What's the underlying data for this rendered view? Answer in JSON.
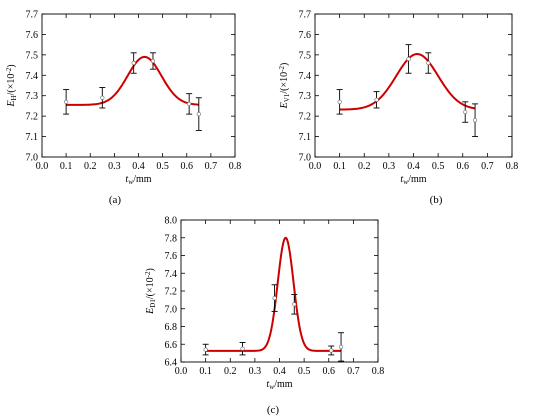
{
  "chart_data": [
    {
      "type": "line",
      "panel_label": "(a)",
      "x_axis_symbol": "t",
      "x_axis_subscript": "w",
      "x_axis_unit": "/mm",
      "y_axis_symbol": "E",
      "y_axis_subscript": "H",
      "y_axis_unit": "/(×10",
      "y_axis_unit_exponent": "-2",
      "y_axis_unit_close": ")",
      "xlim": [
        0.0,
        0.8
      ],
      "ylim": [
        7.0,
        7.7
      ],
      "xticks": [
        "0.0",
        "0.1",
        "0.2",
        "0.3",
        "0.4",
        "0.5",
        "0.6",
        "0.7",
        "0.8"
      ],
      "yticks": [
        "7.0",
        "7.1",
        "7.2",
        "7.3",
        "7.4",
        "7.5",
        "7.6",
        "7.7"
      ],
      "points": [
        {
          "x": 0.1,
          "y": 7.27,
          "err": 0.06
        },
        {
          "x": 0.25,
          "y": 7.29,
          "err": 0.05
        },
        {
          "x": 0.38,
          "y": 7.46,
          "err": 0.05
        },
        {
          "x": 0.46,
          "y": 7.47,
          "err": 0.04
        },
        {
          "x": 0.61,
          "y": 7.26,
          "err": 0.05
        },
        {
          "x": 0.65,
          "y": 7.21,
          "err": 0.08
        }
      ],
      "fit_curve": {
        "baseline": 7.255,
        "amplitude": 0.235,
        "center": 0.425,
        "width": 0.07,
        "x_start": 0.1,
        "x_end": 0.65
      },
      "colors": {
        "fit": "#cc0000",
        "points": "#000000"
      }
    },
    {
      "type": "line",
      "panel_label": "(b)",
      "x_axis_symbol": "t",
      "x_axis_subscript": "w",
      "x_axis_unit": "/mm",
      "y_axis_symbol": "E",
      "y_axis_subscript": "V1",
      "y_axis_unit": "/(×10",
      "y_axis_unit_exponent": "-2",
      "y_axis_unit_close": ")",
      "xlim": [
        0.0,
        0.8
      ],
      "ylim": [
        7.0,
        7.7
      ],
      "xticks": [
        "0.0",
        "0.1",
        "0.2",
        "0.3",
        "0.4",
        "0.5",
        "0.6",
        "0.7",
        "0.8"
      ],
      "yticks": [
        "7.0",
        "7.1",
        "7.2",
        "7.3",
        "7.4",
        "7.5",
        "7.6",
        "7.7"
      ],
      "points": [
        {
          "x": 0.1,
          "y": 7.27,
          "err": 0.06
        },
        {
          "x": 0.25,
          "y": 7.28,
          "err": 0.04
        },
        {
          "x": 0.38,
          "y": 7.48,
          "err": 0.07
        },
        {
          "x": 0.46,
          "y": 7.46,
          "err": 0.05
        },
        {
          "x": 0.61,
          "y": 7.22,
          "err": 0.05
        },
        {
          "x": 0.65,
          "y": 7.18,
          "err": 0.08
        }
      ],
      "fit_curve": {
        "baseline": 7.232,
        "amplitude": 0.272,
        "center": 0.415,
        "width": 0.085,
        "x_start": 0.1,
        "x_end": 0.65
      },
      "colors": {
        "fit": "#cc0000",
        "points": "#000000"
      }
    },
    {
      "type": "line",
      "panel_label": "(c)",
      "x_axis_symbol": "t",
      "x_axis_subscript": "w",
      "x_axis_unit": "/mm",
      "y_axis_symbol": "E",
      "y_axis_subscript": "D1",
      "y_axis_unit": "/(×10",
      "y_axis_unit_exponent": "-2",
      "y_axis_unit_close": ")",
      "xlim": [
        0.0,
        0.8
      ],
      "ylim": [
        6.4,
        8.0
      ],
      "xticks": [
        "0.0",
        "0.1",
        "0.2",
        "0.3",
        "0.4",
        "0.5",
        "0.6",
        "0.7",
        "0.8"
      ],
      "yticks": [
        "6.4",
        "6.6",
        "6.8",
        "7.0",
        "7.2",
        "7.4",
        "7.6",
        "7.8",
        "8.0"
      ],
      "points": [
        {
          "x": 0.1,
          "y": 6.54,
          "err": 0.06
        },
        {
          "x": 0.25,
          "y": 6.55,
          "err": 0.07
        },
        {
          "x": 0.38,
          "y": 7.12,
          "err": 0.15
        },
        {
          "x": 0.46,
          "y": 7.05,
          "err": 0.11
        },
        {
          "x": 0.61,
          "y": 6.53,
          "err": 0.05
        },
        {
          "x": 0.65,
          "y": 6.57,
          "err": 0.16
        }
      ],
      "fit_curve": {
        "baseline": 6.525,
        "amplitude": 1.275,
        "center": 0.425,
        "width": 0.032,
        "x_start": 0.1,
        "x_end": 0.65
      },
      "colors": {
        "fit": "#cc0000",
        "points": "#000000"
      }
    }
  ]
}
